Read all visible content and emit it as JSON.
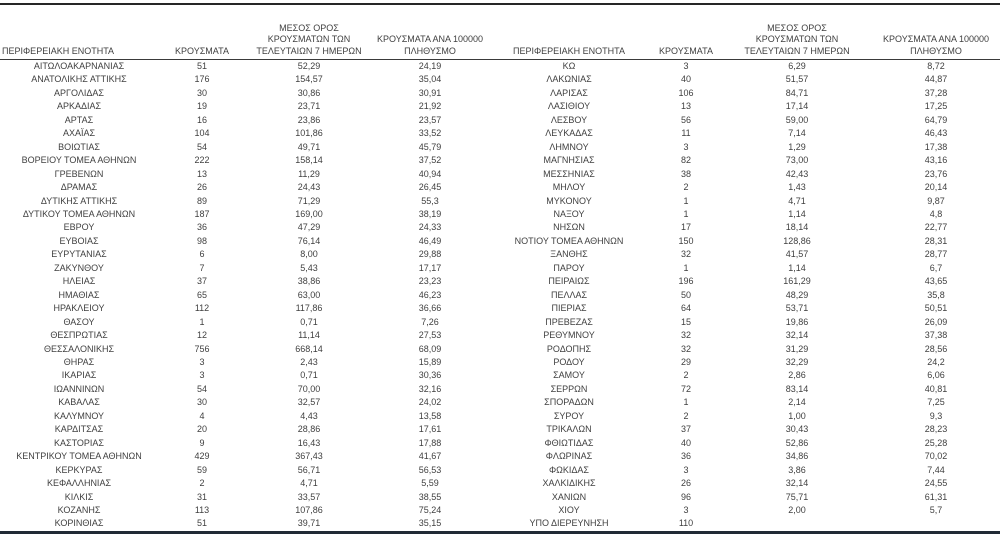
{
  "colors": {
    "text": "#3f3f3f",
    "border_heavy": "#262626",
    "border_bottom": "#212a35"
  },
  "table": {
    "column_headers": {
      "region": "ΠΕΡΙΦΕΡΕΙΑΚΗ ΕΝΟΤΗΤΑ",
      "cases": "ΚΡΟΥΣΜΑΤΑ",
      "avg7": "ΜΕΣΟΣ ΟΡΟΣ\nΚΡΟΥΣΜΑΤΩΝ ΤΩΝ\nΤΕΛΕΥΤΑΙΩΝ 7 ΗΜΕΡΩΝ",
      "per100k": "ΚΡΟΥΣΜΑΤΑ ΑΝΑ 100000\nΠΛΗΘΥΣΜΟ"
    },
    "left_rows": [
      [
        "ΑΙΤΩΛΟΑΚΑΡΝΑΝΙΑΣ",
        "51",
        "52,29",
        "24,19"
      ],
      [
        "ΑΝΑΤΟΛΙΚΗΣ ΑΤΤΙΚΗΣ",
        "176",
        "154,57",
        "35,04"
      ],
      [
        "ΑΡΓΟΛΙΔΑΣ",
        "30",
        "30,86",
        "30,91"
      ],
      [
        "ΑΡΚΑΔΙΑΣ",
        "19",
        "23,71",
        "21,92"
      ],
      [
        "ΑΡΤΑΣ",
        "16",
        "23,86",
        "23,57"
      ],
      [
        "ΑΧΑΪΑΣ",
        "104",
        "101,86",
        "33,52"
      ],
      [
        "ΒΟΙΩΤΙΑΣ",
        "54",
        "49,71",
        "45,79"
      ],
      [
        "ΒΟΡΕΙΟΥ ΤΟΜΕΑ ΑΘΗΝΩΝ",
        "222",
        "158,14",
        "37,52"
      ],
      [
        "ΓΡΕΒΕΝΩΝ",
        "13",
        "11,29",
        "40,94"
      ],
      [
        "ΔΡΑΜΑΣ",
        "26",
        "24,43",
        "26,45"
      ],
      [
        "ΔΥΤΙΚΗΣ ΑΤΤΙΚΗΣ",
        "89",
        "71,29",
        "55,3"
      ],
      [
        "ΔΥΤΙΚΟΥ ΤΟΜΕΑ ΑΘΗΝΩΝ",
        "187",
        "169,00",
        "38,19"
      ],
      [
        "ΕΒΡΟΥ",
        "36",
        "47,29",
        "24,33"
      ],
      [
        "ΕΥΒΟΙΑΣ",
        "98",
        "76,14",
        "46,49"
      ],
      [
        "ΕΥΡΥΤΑΝΙΑΣ",
        "6",
        "8,00",
        "29,88"
      ],
      [
        "ΖΑΚΥΝΘΟΥ",
        "7",
        "5,43",
        "17,17"
      ],
      [
        "ΗΛΕΙΑΣ",
        "37",
        "38,86",
        "23,23"
      ],
      [
        "ΗΜΑΘΙΑΣ",
        "65",
        "63,00",
        "46,23"
      ],
      [
        "ΗΡΑΚΛΕΙΟΥ",
        "112",
        "117,86",
        "36,66"
      ],
      [
        "ΘΑΣΟΥ",
        "1",
        "0,71",
        "7,26"
      ],
      [
        "ΘΕΣΠΡΩΤΙΑΣ",
        "12",
        "11,14",
        "27,53"
      ],
      [
        "ΘΕΣΣΑΛΟΝΙΚΗΣ",
        "756",
        "668,14",
        "68,09"
      ],
      [
        "ΘΗΡΑΣ",
        "3",
        "2,43",
        "15,89"
      ],
      [
        "ΙΚΑΡΙΑΣ",
        "3",
        "0,71",
        "30,36"
      ],
      [
        "ΙΩΑΝΝΙΝΩΝ",
        "54",
        "70,00",
        "32,16"
      ],
      [
        "ΚΑΒΑΛΑΣ",
        "30",
        "32,57",
        "24,02"
      ],
      [
        "ΚΑΛΥΜΝΟΥ",
        "4",
        "4,43",
        "13,58"
      ],
      [
        "ΚΑΡΔΙΤΣΑΣ",
        "20",
        "28,86",
        "17,61"
      ],
      [
        "ΚΑΣΤΟΡΙΑΣ",
        "9",
        "16,43",
        "17,88"
      ],
      [
        "ΚΕΝΤΡΙΚΟΥ ΤΟΜΕΑ ΑΘΗΝΩΝ",
        "429",
        "367,43",
        "41,67"
      ],
      [
        "ΚΕΡΚΥΡΑΣ",
        "59",
        "56,71",
        "56,53"
      ],
      [
        "ΚΕΦΑΛΛΗΝΙΑΣ",
        "2",
        "4,71",
        "5,59"
      ],
      [
        "ΚΙΛΚΙΣ",
        "31",
        "33,57",
        "38,55"
      ],
      [
        "ΚΟΖΑΝΗΣ",
        "113",
        "107,86",
        "75,24"
      ],
      [
        "ΚΟΡΙΝΘΙΑΣ",
        "51",
        "39,71",
        "35,15"
      ]
    ],
    "right_rows": [
      [
        "ΚΩ",
        "3",
        "6,29",
        "8,72"
      ],
      [
        "ΛΑΚΩΝΙΑΣ",
        "40",
        "51,57",
        "44,87"
      ],
      [
        "ΛΑΡΙΣΑΣ",
        "106",
        "84,71",
        "37,28"
      ],
      [
        "ΛΑΣΙΘΙΟΥ",
        "13",
        "17,14",
        "17,25"
      ],
      [
        "ΛΕΣΒΟΥ",
        "56",
        "59,00",
        "64,79"
      ],
      [
        "ΛΕΥΚΑΔΑΣ",
        "11",
        "7,14",
        "46,43"
      ],
      [
        "ΛΗΜΝΟΥ",
        "3",
        "1,29",
        "17,38"
      ],
      [
        "ΜΑΓΝΗΣΙΑΣ",
        "82",
        "73,00",
        "43,16"
      ],
      [
        "ΜΕΣΣΗΝΙΑΣ",
        "38",
        "42,43",
        "23,76"
      ],
      [
        "ΜΗΛΟΥ",
        "2",
        "1,43",
        "20,14"
      ],
      [
        "ΜΥΚΟΝΟΥ",
        "1",
        "4,71",
        "9,87"
      ],
      [
        "ΝΑΞΟΥ",
        "1",
        "1,14",
        "4,8"
      ],
      [
        "ΝΗΣΩΝ",
        "17",
        "18,14",
        "22,77"
      ],
      [
        "ΝΟΤΙΟΥ ΤΟΜΕΑ ΑΘΗΝΩΝ",
        "150",
        "128,86",
        "28,31"
      ],
      [
        "ΞΑΝΘΗΣ",
        "32",
        "41,57",
        "28,77"
      ],
      [
        "ΠΑΡΟΥ",
        "1",
        "1,14",
        "6,7"
      ],
      [
        "ΠΕΙΡΑΙΩΣ",
        "196",
        "161,29",
        "43,65"
      ],
      [
        "ΠΕΛΛΑΣ",
        "50",
        "48,29",
        "35,8"
      ],
      [
        "ΠΙΕΡΙΑΣ",
        "64",
        "53,71",
        "50,51"
      ],
      [
        "ΠΡΕΒΕΖΑΣ",
        "15",
        "19,86",
        "26,09"
      ],
      [
        "ΡΕΘΥΜΝΟΥ",
        "32",
        "32,14",
        "37,38"
      ],
      [
        "ΡΟΔΟΠΗΣ",
        "32",
        "31,29",
        "28,56"
      ],
      [
        "ΡΟΔΟΥ",
        "29",
        "32,29",
        "24,2"
      ],
      [
        "ΣΑΜΟΥ",
        "2",
        "2,86",
        "6,06"
      ],
      [
        "ΣΕΡΡΩΝ",
        "72",
        "83,14",
        "40,81"
      ],
      [
        "ΣΠΟΡΑΔΩΝ",
        "1",
        "2,14",
        "7,25"
      ],
      [
        "ΣΥΡΟΥ",
        "2",
        "1,00",
        "9,3"
      ],
      [
        "ΤΡΙΚΑΛΩΝ",
        "37",
        "30,43",
        "28,23"
      ],
      [
        "ΦΘΙΩΤΙΔΑΣ",
        "40",
        "52,86",
        "25,28"
      ],
      [
        "ΦΛΩΡΙΝΑΣ",
        "36",
        "34,86",
        "70,02"
      ],
      [
        "ΦΩΚΙΔΑΣ",
        "3",
        "3,86",
        "7,44"
      ],
      [
        "ΧΑΛΚΙΔΙΚΗΣ",
        "26",
        "32,14",
        "24,55"
      ],
      [
        "ΧΑΝΙΩΝ",
        "96",
        "75,71",
        "61,31"
      ],
      [
        "ΧΙΟΥ",
        "3",
        "2,00",
        "5,7"
      ],
      [
        "ΥΠΟ ΔΙΕΡΕΥΝΗΣΗ",
        "110",
        "",
        ""
      ]
    ]
  }
}
